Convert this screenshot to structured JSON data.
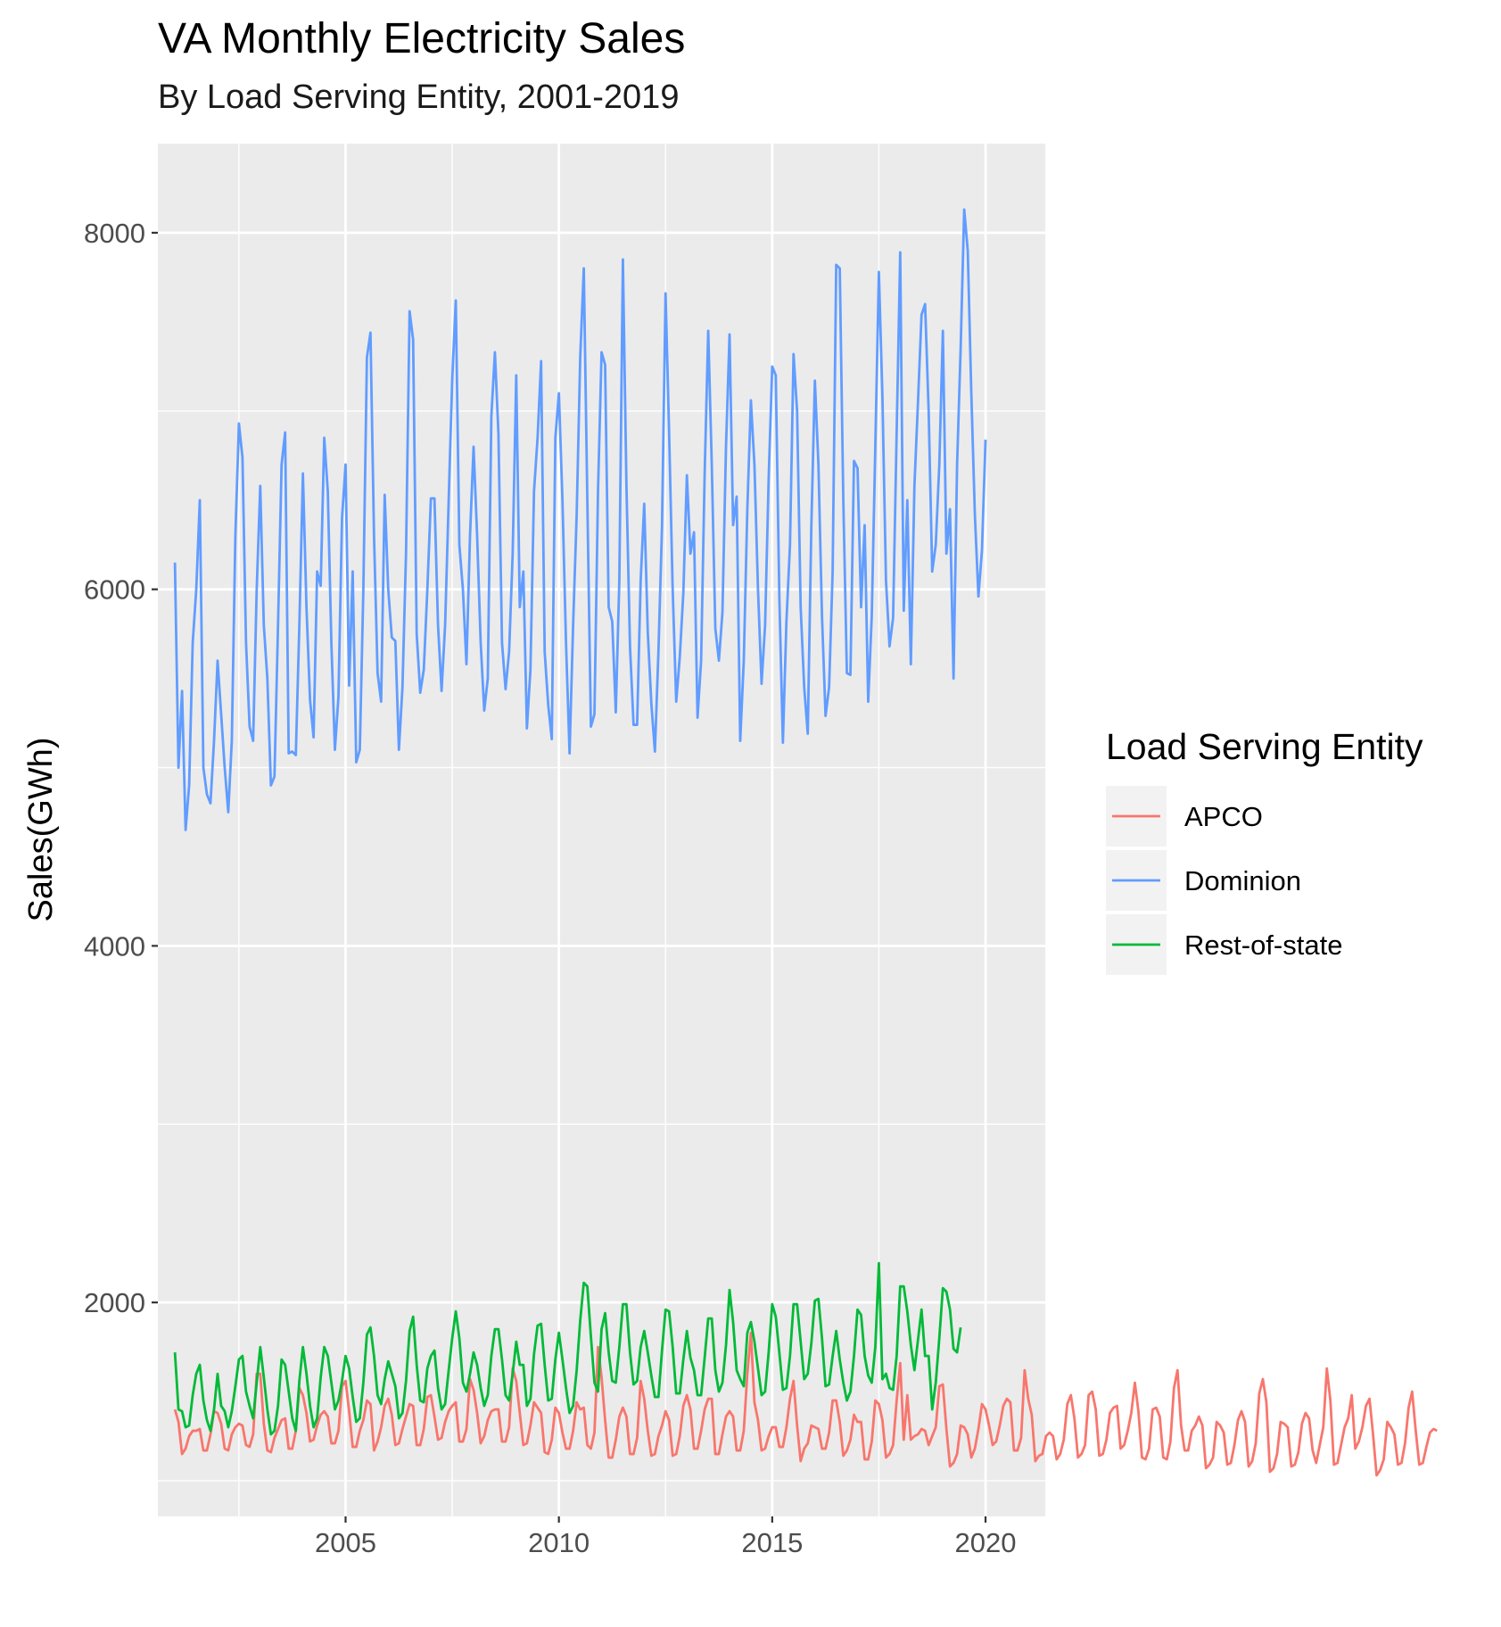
{
  "chart_data": {
    "type": "line",
    "title": "VA Monthly Electricity Sales",
    "subtitle": "By Load Serving Entity, 2001-2019",
    "xlabel": "",
    "ylabel": "Sales(GWh)",
    "xlim": [
      2000.6,
      2021.4
    ],
    "ylim": [
      800,
      8500
    ],
    "x_ticks": [
      2005,
      2010,
      2015,
      2020
    ],
    "y_ticks": [
      2000,
      4000,
      6000,
      8000
    ],
    "x_start": 2001.0,
    "x_step": 0.08333333,
    "grid": true,
    "legend_title": "Load Serving Entity",
    "legend_position": "right",
    "series": [
      {
        "name": "APCO",
        "color": "#F8766D",
        "values": [
          1400,
          1330,
          1150,
          1180,
          1250,
          1280,
          1280,
          1290,
          1170,
          1170,
          1260,
          1390,
          1380,
          1320,
          1180,
          1170,
          1260,
          1300,
          1320,
          1310,
          1200,
          1190,
          1260,
          1600,
          1600,
          1320,
          1170,
          1160,
          1240,
          1290,
          1340,
          1350,
          1180,
          1180,
          1280,
          1520,
          1480,
          1380,
          1220,
          1230,
          1310,
          1370,
          1390,
          1360,
          1210,
          1210,
          1280,
          1530,
          1560,
          1390,
          1190,
          1190,
          1280,
          1340,
          1450,
          1430,
          1170,
          1220,
          1300,
          1420,
          1460,
          1370,
          1200,
          1210,
          1290,
          1360,
          1430,
          1420,
          1200,
          1200,
          1290,
          1470,
          1480,
          1360,
          1230,
          1240,
          1330,
          1390,
          1420,
          1440,
          1220,
          1220,
          1290,
          1570,
          1510,
          1380,
          1210,
          1250,
          1340,
          1390,
          1400,
          1400,
          1220,
          1220,
          1300,
          1630,
          1560,
          1380,
          1200,
          1210,
          1310,
          1440,
          1410,
          1380,
          1160,
          1150,
          1230,
          1410,
          1380,
          1270,
          1180,
          1180,
          1280,
          1440,
          1400,
          1410,
          1200,
          1180,
          1270,
          1750,
          1580,
          1340,
          1130,
          1130,
          1230,
          1360,
          1410,
          1360,
          1150,
          1150,
          1240,
          1560,
          1460,
          1280,
          1140,
          1150,
          1250,
          1310,
          1390,
          1340,
          1140,
          1150,
          1250,
          1420,
          1480,
          1400,
          1180,
          1180,
          1280,
          1400,
          1460,
          1460,
          1150,
          1150,
          1260,
          1360,
          1390,
          1360,
          1170,
          1170,
          1280,
          1600,
          1830,
          1440,
          1340,
          1170,
          1180,
          1250,
          1300,
          1300,
          1190,
          1190,
          1300,
          1460,
          1560,
          1310,
          1110,
          1180,
          1210,
          1310,
          1300,
          1290,
          1180,
          1180,
          1270,
          1450,
          1450,
          1330,
          1140,
          1170,
          1230,
          1370,
          1330,
          1330,
          1120,
          1120,
          1220,
          1450,
          1430,
          1340,
          1130,
          1150,
          1200,
          1450,
          1660,
          1230,
          1480,
          1230,
          1250,
          1260,
          1290,
          1280,
          1200,
          1250,
          1300,
          1530,
          1540,
          1290,
          1080,
          1100,
          1150,
          1310,
          1300,
          1260,
          1130,
          1180,
          1290,
          1430,
          1400,
          1310,
          1200,
          1220,
          1310,
          1420,
          1460,
          1440,
          1170,
          1170,
          1240,
          1620,
          1460,
          1370,
          1110,
          1140,
          1150,
          1250,
          1270,
          1250,
          1120,
          1150,
          1230,
          1430,
          1480,
          1350,
          1130,
          1150,
          1200,
          1480,
          1500,
          1400,
          1140,
          1150,
          1230,
          1380,
          1410,
          1420,
          1180,
          1200,
          1280,
          1380,
          1550,
          1390,
          1130,
          1120,
          1180,
          1400,
          1410,
          1360,
          1130,
          1120,
          1220,
          1520,
          1620,
          1310,
          1170,
          1170,
          1280,
          1310,
          1360,
          1310,
          1070,
          1090,
          1130,
          1330,
          1310,
          1270,
          1090,
          1100,
          1200,
          1340,
          1390,
          1330,
          1080,
          1110,
          1210,
          1490,
          1570,
          1440,
          1050,
          1070,
          1150,
          1330,
          1320,
          1300,
          1080,
          1090,
          1160,
          1320,
          1380,
          1350,
          1170,
          1100,
          1200,
          1300,
          1630,
          1450,
          1090,
          1100,
          1200,
          1300,
          1350,
          1480,
          1180,
          1220,
          1300,
          1420,
          1460,
          1260,
          1030,
          1060,
          1120,
          1330,
          1300,
          1260,
          1090,
          1100,
          1210,
          1410,
          1500,
          1280,
          1090,
          1100,
          1190,
          1270,
          1290,
          1280
        ]
      },
      {
        "name": "Dominion",
        "color": "#619CFF",
        "values": [
          6150,
          5000,
          5430,
          4650,
          4900,
          5700,
          6000,
          6500,
          5000,
          4850,
          4800,
          5150,
          5600,
          5300,
          5000,
          4750,
          5150,
          6300,
          6930,
          6740,
          5700,
          5230,
          5150,
          6000,
          6580,
          5800,
          5500,
          4900,
          4950,
          5800,
          6700,
          6880,
          5080,
          5090,
          5070,
          5800,
          6650,
          5900,
          5380,
          5170,
          6100,
          6020,
          6850,
          6550,
          5700,
          5100,
          5400,
          6400,
          6700,
          5460,
          6100,
          5030,
          5100,
          6000,
          7300,
          7440,
          6300,
          5530,
          5370,
          6530,
          6000,
          5730,
          5710,
          5100,
          5450,
          6200,
          7560,
          7400,
          5750,
          5420,
          5550,
          6000,
          6510,
          6510,
          5800,
          5430,
          5800,
          6500,
          7180,
          7620,
          6250,
          6000,
          5580,
          6300,
          6800,
          6300,
          5700,
          5320,
          5500,
          6970,
          7330,
          6870,
          5700,
          5440,
          5650,
          6200,
          7200,
          5900,
          6100,
          5220,
          5550,
          6550,
          6850,
          7280,
          5650,
          5350,
          5160,
          6850,
          7100,
          6500,
          5700,
          5080,
          5800,
          6420,
          7300,
          7800,
          6500,
          5230,
          5300,
          6550,
          7330,
          7260,
          5900,
          5820,
          5310,
          6050,
          7850,
          6580,
          5680,
          5240,
          5240,
          6050,
          6480,
          5760,
          5360,
          5090,
          5650,
          6350,
          7660,
          6880,
          6000,
          5370,
          5620,
          5980,
          6640,
          6200,
          6320,
          5280,
          5600,
          6650,
          7450,
          6700,
          5780,
          5600,
          5870,
          6800,
          7430,
          6360,
          6520,
          5150,
          5600,
          6450,
          7060,
          6700,
          6000,
          5470,
          5800,
          6620,
          7250,
          7200,
          5960,
          5140,
          5820,
          6250,
          7320,
          7000,
          5900,
          5450,
          5190,
          6350,
          7170,
          6700,
          5850,
          5290,
          5450,
          6100,
          7820,
          7800,
          6500,
          5530,
          5520,
          6720,
          6680,
          5900,
          6360,
          5370,
          5850,
          6800,
          7780,
          7080,
          6050,
          5680,
          5840,
          6880,
          7890,
          5880,
          6500,
          5580,
          6580,
          7050,
          7540,
          7600,
          7000,
          6100,
          6250,
          6700,
          7450,
          6200,
          6450,
          5500,
          6700,
          7350,
          8130,
          7900,
          7100,
          6420,
          5960,
          6220,
          6840
        ]
      },
      {
        "name": "Rest-of-state",
        "color": "#00BA38",
        "values": [
          1720,
          1400,
          1390,
          1300,
          1310,
          1480,
          1600,
          1650,
          1450,
          1340,
          1280,
          1400,
          1600,
          1420,
          1390,
          1300,
          1390,
          1530,
          1680,
          1700,
          1500,
          1420,
          1350,
          1550,
          1750,
          1580,
          1400,
          1260,
          1280,
          1420,
          1680,
          1650,
          1500,
          1350,
          1280,
          1560,
          1750,
          1600,
          1420,
          1300,
          1350,
          1580,
          1750,
          1700,
          1550,
          1400,
          1450,
          1560,
          1700,
          1630,
          1470,
          1330,
          1350,
          1550,
          1820,
          1860,
          1700,
          1480,
          1430,
          1570,
          1670,
          1600,
          1530,
          1350,
          1380,
          1560,
          1840,
          1920,
          1650,
          1450,
          1440,
          1630,
          1700,
          1730,
          1520,
          1400,
          1430,
          1620,
          1800,
          1950,
          1800,
          1550,
          1500,
          1600,
          1720,
          1650,
          1520,
          1420,
          1480,
          1700,
          1850,
          1850,
          1680,
          1480,
          1450,
          1600,
          1780,
          1650,
          1650,
          1420,
          1460,
          1710,
          1870,
          1880,
          1650,
          1450,
          1460,
          1680,
          1830,
          1680,
          1520,
          1380,
          1420,
          1620,
          1900,
          2110,
          2090,
          1810,
          1550,
          1500,
          1850,
          1940,
          1720,
          1560,
          1550,
          1750,
          1990,
          1990,
          1720,
          1540,
          1560,
          1750,
          1840,
          1720,
          1590,
          1470,
          1470,
          1730,
          1960,
          1950,
          1750,
          1490,
          1490,
          1680,
          1840,
          1690,
          1620,
          1480,
          1480,
          1690,
          1910,
          1910,
          1620,
          1500,
          1550,
          1760,
          2070,
          1890,
          1620,
          1570,
          1530,
          1830,
          1890,
          1780,
          1630,
          1480,
          1500,
          1720,
          1990,
          1920,
          1720,
          1510,
          1520,
          1700,
          1990,
          1990,
          1780,
          1570,
          1600,
          1770,
          2010,
          2020,
          1800,
          1530,
          1540,
          1700,
          1840,
          1680,
          1550,
          1450,
          1500,
          1700,
          1960,
          1930,
          1700,
          1590,
          1550,
          1750,
          2220,
          1570,
          1600,
          1520,
          1510,
          1700,
          2090,
          2090,
          1950,
          1760,
          1620,
          1790,
          1960,
          1700,
          1700,
          1400,
          1550,
          1800,
          2080,
          2060,
          1960,
          1740,
          1720,
          1860
        ]
      }
    ]
  }
}
